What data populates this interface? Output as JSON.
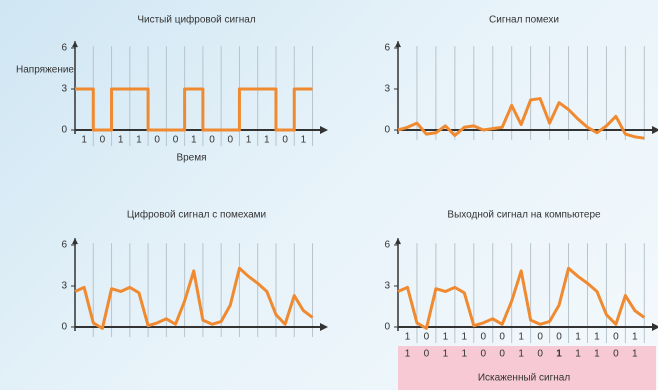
{
  "chart_data": [
    {
      "type": "line",
      "title": "Чистый цифровой сигнал",
      "y_label": "Напряжение",
      "x_label": "Время",
      "categories": [
        "1",
        "0",
        "1",
        "1",
        "0",
        "0",
        "1",
        "0",
        "0",
        "1",
        "1",
        "0",
        "1"
      ],
      "x": [
        0,
        1,
        1,
        2,
        2,
        4,
        4,
        6,
        6,
        7,
        7,
        9,
        9,
        11,
        11,
        12,
        12,
        13
      ],
      "series": [
        {
          "color": "#f08a30",
          "values": [
            3,
            3,
            0,
            0,
            3,
            3,
            0,
            0,
            3,
            3,
            0,
            0,
            3,
            3,
            0,
            0,
            3,
            3
          ]
        }
      ],
      "xlim": [
        0,
        13.3
      ],
      "ylim": [
        -0.8,
        6.5
      ],
      "yticks": [
        0,
        3,
        6
      ],
      "grid": true
    },
    {
      "type": "line",
      "title": "Сигнал помехи",
      "x": [
        0,
        0.5,
        1,
        1.5,
        2,
        2.5,
        3,
        3.5,
        4,
        4.5,
        5,
        5.5,
        6,
        6.5,
        7,
        7.5,
        8,
        8.5,
        9,
        9.5,
        10,
        10.5,
        11,
        11.5,
        12,
        12.5,
        13
      ],
      "series": [
        {
          "color": "#f08a30",
          "values": [
            0,
            0.2,
            0.5,
            -0.3,
            -0.2,
            0.3,
            -0.4,
            0.2,
            0.3,
            0,
            0.1,
            0.2,
            1.8,
            0.4,
            2.2,
            2.3,
            0.5,
            2,
            1.5,
            0.8,
            0.2,
            -0.2,
            0.3,
            1,
            -0.3,
            -0.5,
            -0.6
          ]
        }
      ],
      "xlim": [
        0,
        13.3
      ],
      "ylim": [
        -0.8,
        6.5
      ],
      "yticks": [
        0,
        3,
        6
      ],
      "grid": true
    },
    {
      "type": "line",
      "title": "Цифровой сигнал с помехами",
      "x": [
        0,
        0.5,
        1,
        1.5,
        2,
        2.5,
        3,
        3.5,
        4,
        4.5,
        5,
        5.5,
        6,
        6.5,
        7,
        7.5,
        8,
        8.5,
        9,
        9.5,
        10,
        10.5,
        11,
        11.5,
        12,
        12.5,
        13
      ],
      "series": [
        {
          "color": "#f08a30",
          "values": [
            2.6,
            2.9,
            0.3,
            -0.1,
            2.8,
            2.6,
            2.9,
            2.5,
            0.1,
            0.3,
            0.6,
            0.2,
            1.9,
            4.1,
            0.5,
            0.2,
            0.4,
            1.6,
            4.3,
            3.7,
            3.2,
            2.6,
            0.9,
            0.2,
            2.3,
            1.2,
            0.7
          ]
        }
      ],
      "xlim": [
        0,
        13.3
      ],
      "ylim": [
        -0.8,
        6.5
      ],
      "yticks": [
        0,
        3,
        6
      ],
      "grid": true
    },
    {
      "type": "line",
      "title": "Выходной сигнал на компьютере",
      "categories": [
        "1",
        "0",
        "1",
        "1",
        "0",
        "0",
        "1",
        "0",
        "0",
        "1",
        "1",
        "0",
        "1"
      ],
      "received": [
        "1",
        "0",
        "1",
        "1",
        "0",
        "0",
        "1",
        "0",
        "1",
        "1",
        "1",
        "0",
        "1"
      ],
      "received_label": "Искаженный сигнал",
      "highlight_index": 8,
      "highlight_color": "#e0305a",
      "x": [
        0,
        0.5,
        1,
        1.5,
        2,
        2.5,
        3,
        3.5,
        4,
        4.5,
        5,
        5.5,
        6,
        6.5,
        7,
        7.5,
        8,
        8.5,
        9,
        9.5,
        10,
        10.5,
        11,
        11.5,
        12,
        12.5,
        13
      ],
      "series": [
        {
          "color": "#f08a30",
          "values": [
            2.6,
            2.9,
            0.3,
            -0.1,
            2.8,
            2.6,
            2.9,
            2.5,
            0.1,
            0.3,
            0.6,
            0.2,
            1.9,
            4.1,
            0.5,
            0.2,
            0.4,
            1.6,
            4.3,
            3.7,
            3.2,
            2.6,
            0.9,
            0.2,
            2.3,
            1.2,
            0.7
          ]
        }
      ],
      "xlim": [
        0,
        13.3
      ],
      "ylim": [
        -0.8,
        6.5
      ],
      "yticks": [
        0,
        3,
        6
      ],
      "grid": true
    }
  ]
}
